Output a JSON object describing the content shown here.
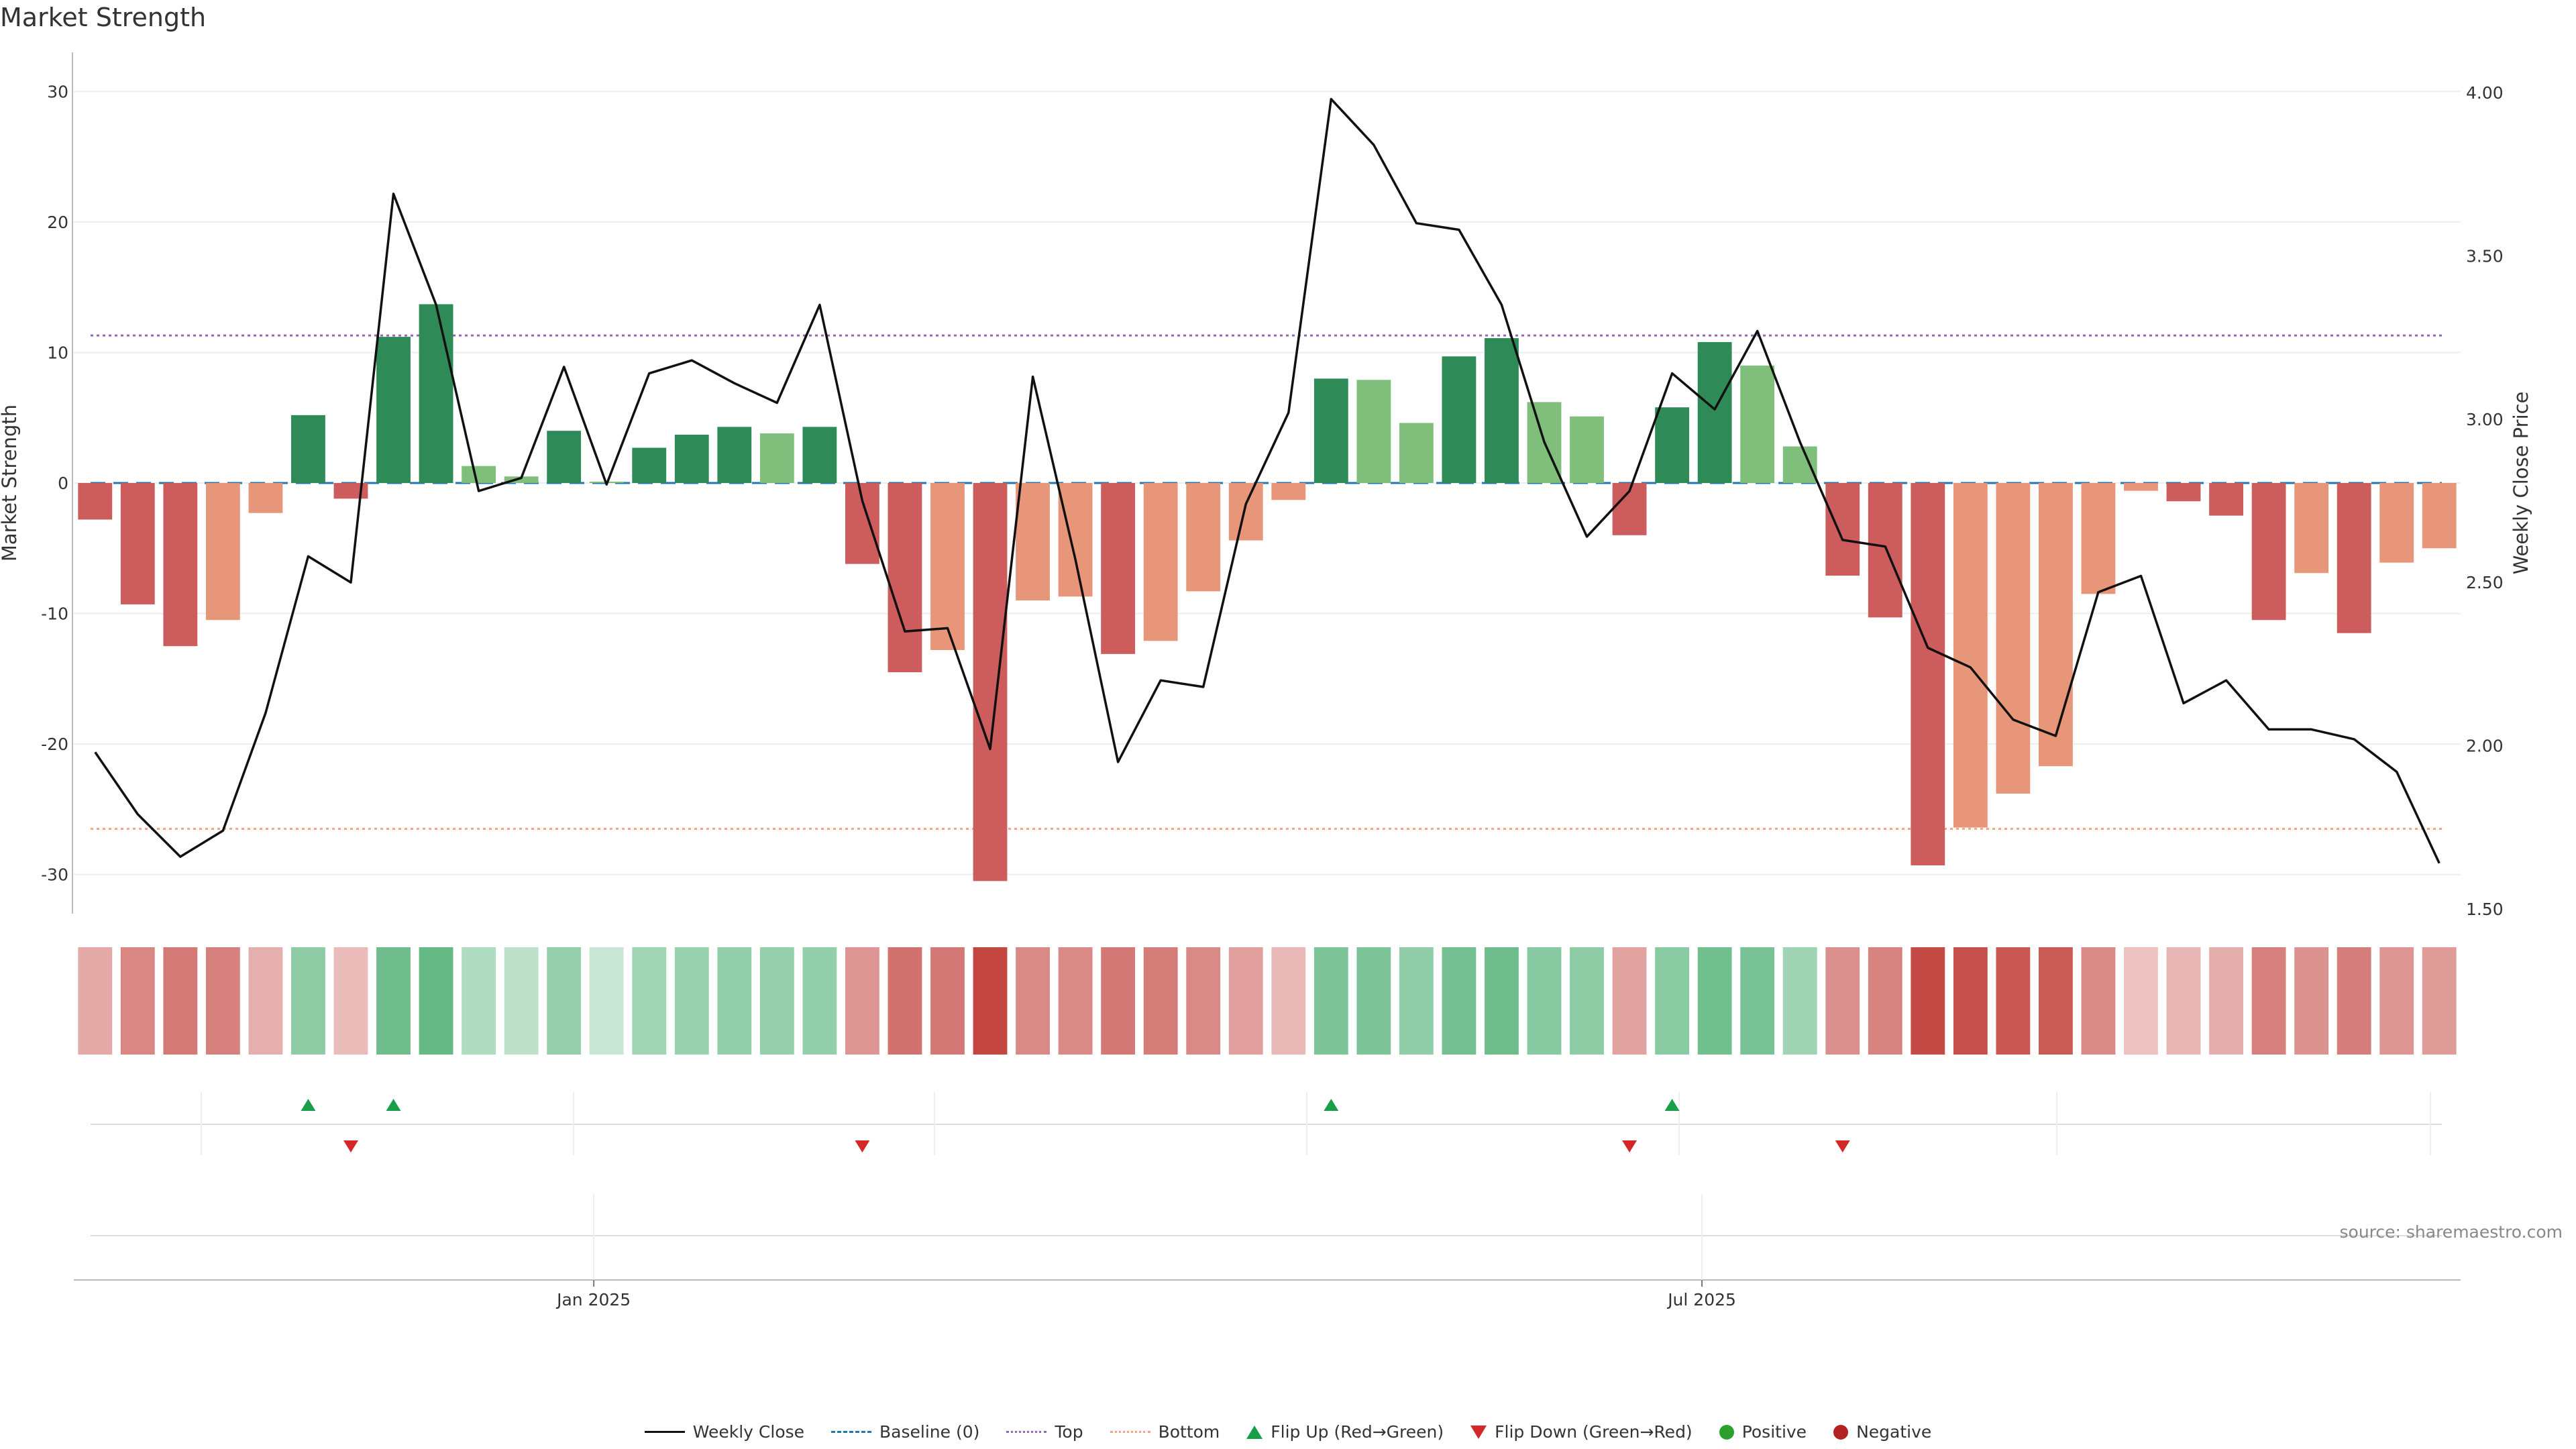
{
  "title": "Market Strength",
  "source": "source: sharemaestro.com",
  "colors": {
    "pos_strong": "#2e8b57",
    "pos_weak": "#7fbf7b",
    "neg_strong": "#cd5c5c",
    "neg_weak": "#e8967a",
    "line": "#111111",
    "baseline": "#1f77b4",
    "top": "#9467bd",
    "bottom": "#f4a582",
    "flip_up": "#1a9e4a",
    "flip_down": "#d62728",
    "positive": "#2ca02c",
    "negative": "#b22222"
  },
  "legend": [
    {
      "label": "Weekly Close",
      "kind": "line"
    },
    {
      "label": "Baseline (0)",
      "kind": "dash"
    },
    {
      "label": "Top",
      "kind": "dot-purple"
    },
    {
      "label": "Bottom",
      "kind": "dot-orange"
    },
    {
      "label": "Flip Up (Red→Green)",
      "kind": "tri-up"
    },
    {
      "label": "Flip Down (Green→Red)",
      "kind": "tri-down"
    },
    {
      "label": "Positive",
      "kind": "circle-pos"
    },
    {
      "label": "Negative",
      "kind": "circle-neg"
    }
  ],
  "chart_data": {
    "type": "bar",
    "ylabel_left": "Market Strength",
    "ylabel_right": "Weekly Close Price",
    "ylim_left": [
      -33,
      33
    ],
    "ylim_right": [
      1.5,
      4.0
    ],
    "yticks_left": [
      30,
      20,
      10,
      0,
      -10,
      -20,
      -30
    ],
    "yticks_right": [
      "4.00",
      "3.50",
      "3.00",
      "2.50",
      "2.00",
      "1.50"
    ],
    "xticks": [
      {
        "label": "Jan 2025",
        "index": 11.7
      },
      {
        "label": "Jul 2025",
        "index": 37.7
      }
    ],
    "top_level": 11.3,
    "bottom_level": -26.5,
    "baseline": 0,
    "strength": [
      -2.8,
      -9.3,
      -12.5,
      -10.5,
      -2.3,
      5.2,
      -1.2,
      11.2,
      13.7,
      1.3,
      0.5,
      4.0,
      0.1,
      2.7,
      3.7,
      4.3,
      3.8,
      4.3,
      -6.2,
      -14.5,
      -12.8,
      -30.5,
      -9.0,
      -8.7,
      -13.1,
      -12.1,
      -8.3,
      -4.4,
      -1.3,
      8.0,
      7.9,
      4.6,
      9.7,
      11.1,
      6.2,
      5.1,
      -4.0,
      5.8,
      10.8,
      9.0,
      2.8,
      -7.1,
      -10.3,
      -29.3,
      -26.4,
      -23.8,
      -21.7,
      -8.5,
      -0.6,
      -1.4,
      -2.5,
      -10.5,
      -6.9,
      -11.5,
      -6.1,
      -5.0
    ],
    "weekly_close": [
      1.98,
      1.79,
      1.66,
      1.74,
      2.1,
      2.58,
      2.5,
      3.69,
      3.35,
      2.78,
      2.82,
      3.16,
      2.8,
      3.14,
      3.18,
      3.11,
      3.05,
      3.35,
      2.75,
      2.35,
      2.36,
      1.99,
      3.13,
      2.57,
      1.95,
      2.2,
      2.18,
      2.74,
      3.02,
      3.98,
      3.84,
      3.6,
      3.58,
      3.35,
      2.93,
      2.64,
      2.78,
      3.14,
      3.03,
      3.27,
      2.93,
      2.63,
      2.61,
      2.3,
      2.24,
      2.08,
      2.03,
      2.47,
      2.52,
      2.13,
      2.2,
      2.05,
      2.05,
      2.02,
      1.92,
      1.64
    ],
    "flip_up_indices": [
      5,
      7,
      29,
      37
    ],
    "flip_down_indices": [
      6,
      18,
      36,
      41
    ]
  }
}
